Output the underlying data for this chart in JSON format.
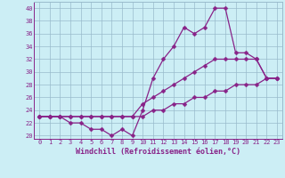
{
  "xlabel": "Windchill (Refroidissement éolien,°C)",
  "background_color": "#cceef5",
  "line_color": "#882288",
  "grid_color": "#99bbcc",
  "hours": [
    0,
    1,
    2,
    3,
    4,
    5,
    6,
    7,
    8,
    9,
    10,
    11,
    12,
    13,
    14,
    15,
    16,
    17,
    18,
    19,
    20,
    21,
    22,
    23
  ],
  "line1": [
    23,
    23,
    23,
    22,
    22,
    21,
    21,
    20,
    21,
    20,
    24,
    29,
    32,
    34,
    37,
    36,
    37,
    40,
    40,
    33,
    33,
    32,
    29,
    29
  ],
  "line2": [
    23,
    23,
    23,
    23,
    23,
    23,
    23,
    23,
    23,
    23,
    25,
    26,
    27,
    28,
    29,
    30,
    31,
    32,
    32,
    32,
    32,
    32,
    29,
    29
  ],
  "line3": [
    23,
    23,
    23,
    23,
    23,
    23,
    23,
    23,
    23,
    23,
    23,
    24,
    24,
    25,
    25,
    26,
    26,
    27,
    27,
    28,
    28,
    28,
    29,
    29
  ],
  "ylim": [
    19.5,
    41
  ],
  "yticks": [
    20,
    22,
    24,
    26,
    28,
    30,
    32,
    34,
    36,
    38,
    40
  ],
  "xlim": [
    -0.5,
    23.5
  ],
  "xticks": [
    0,
    1,
    2,
    3,
    4,
    5,
    6,
    7,
    8,
    9,
    10,
    11,
    12,
    13,
    14,
    15,
    16,
    17,
    18,
    19,
    20,
    21,
    22,
    23
  ],
  "markersize": 2.5,
  "linewidth": 0.9,
  "tick_fontsize": 5.0,
  "label_fontsize": 6.0
}
